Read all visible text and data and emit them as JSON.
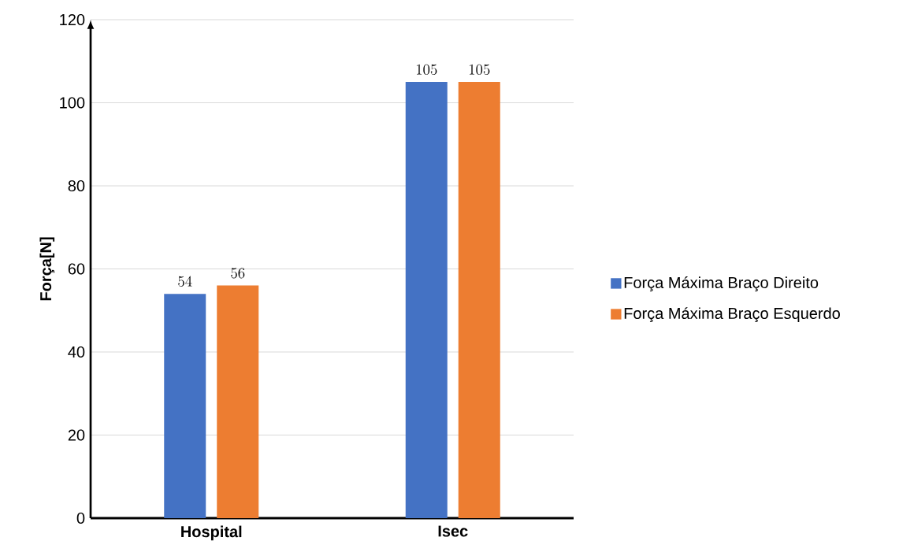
{
  "chart_data": {
    "type": "bar",
    "ylabel": "Força[N]",
    "categories": [
      "Hospital",
      "Isec"
    ],
    "series": [
      {
        "name": "Força Máxima Braço Direito",
        "color": "#4472c4",
        "values": [
          54,
          105
        ]
      },
      {
        "name": "Força Máxima Braço Esquerdo",
        "color": "#ed7d31",
        "values": [
          56,
          105
        ]
      }
    ],
    "ylim": [
      0,
      120
    ],
    "yticks": [
      0,
      20,
      40,
      60,
      80,
      100,
      120
    ],
    "grid": "y",
    "legend": "right",
    "data_labels": true
  }
}
